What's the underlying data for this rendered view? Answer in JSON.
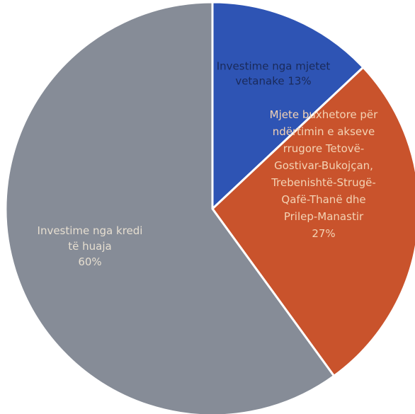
{
  "chart_data": {
    "type": "pie",
    "title": "",
    "slices": [
      {
        "name": "Investime nga mjetet vetanake",
        "value": 13,
        "label_lines": [
          "Investime nga mjetet",
          "vetanake 13%"
        ],
        "color": "#2E54B4",
        "label_color": "#1a2a5a"
      },
      {
        "name": "Mjete buxhetore për ndërtimin e akseve rrugore Tetovë-Gostivar-Bukojçan, Trebenishtë-Strugë-Qafë-Thanë dhe Prilep-Manastir",
        "value": 27,
        "label_lines": [
          "Mjete buxhetore për",
          "ndërtimin e akseve",
          "rrugore Tetovë-",
          "Gostivar-Bukojçan,",
          "Trebenishtë-Strugë-",
          "Qafë-Thanë dhe",
          "Prilep-Manastir",
          "27%"
        ],
        "color": "#C9532C",
        "label_color": "#f3d3b4"
      },
      {
        "name": "Investime nga kredi të huaja",
        "value": 60,
        "label_lines": [
          "Investime nga kredi",
          "të huaja",
          "60%"
        ],
        "color": "#868C97",
        "label_color": "#e6ded0"
      }
    ]
  }
}
